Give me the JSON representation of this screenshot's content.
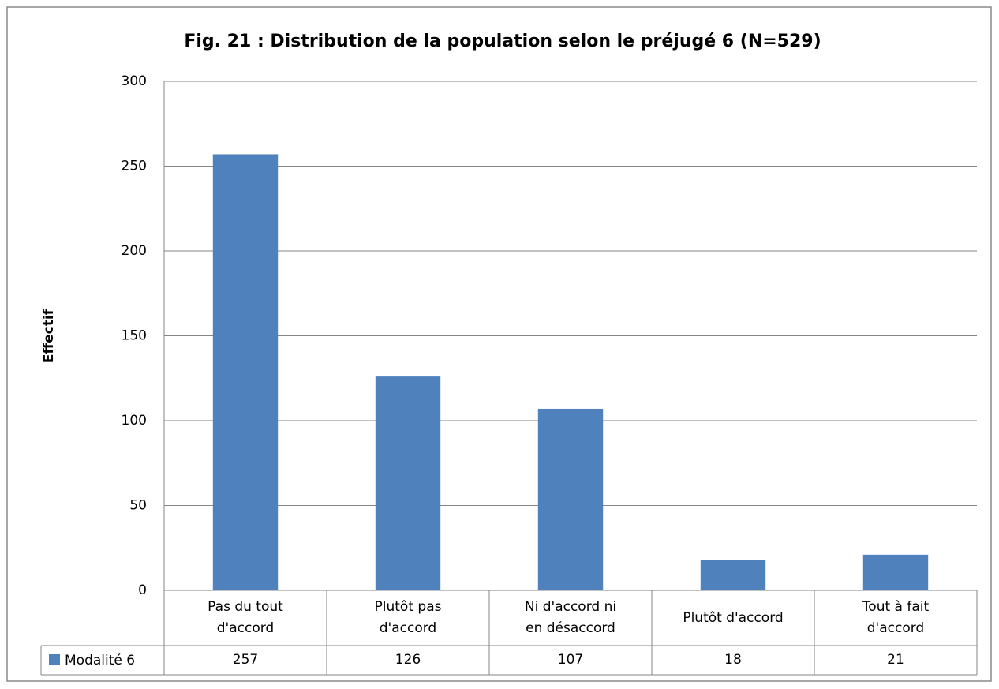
{
  "chart_data": {
    "type": "bar",
    "title": "Fig. 21 : Distribution de la population selon le préjugé 6 (N=529)",
    "y_label": "Effectif",
    "categories": [
      "Pas du tout\nd'accord",
      "Plutôt pas\nd'accord",
      "Ni d'accord ni\nen désaccord",
      "Plutôt d'accord",
      "Tout à fait\nd'accord"
    ],
    "series": [
      {
        "name": "Modalité 6",
        "color": "#4f81bd",
        "values": [
          257,
          126,
          107,
          18,
          21
        ]
      }
    ],
    "ylim": [
      0,
      300
    ],
    "yticks": [
      0,
      50,
      100,
      150,
      200,
      250,
      300
    ],
    "grid": true,
    "data_table": true
  }
}
